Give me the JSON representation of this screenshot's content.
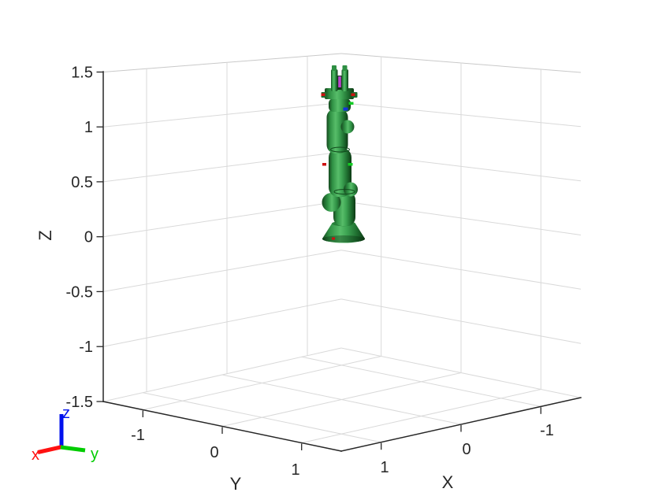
{
  "figure": {
    "background": "#ffffff"
  },
  "axes": {
    "x": {
      "label": "X",
      "tick_labels": [
        "1",
        "0",
        "-1"
      ],
      "range": [
        -1.5,
        1.5
      ]
    },
    "y": {
      "label": "Y",
      "tick_labels": [
        "-1",
        "0",
        "1"
      ],
      "range": [
        -1.5,
        1.5
      ]
    },
    "z": {
      "label": "Z",
      "tick_labels": [
        "1.5",
        "1",
        "0.5",
        "0",
        "-0.5",
        "-1",
        "-1.5"
      ],
      "range": [
        -1.5,
        1.5
      ]
    }
  },
  "triad": {
    "x": {
      "label": "x",
      "color": "#ff1111"
    },
    "y": {
      "label": "y",
      "color": "#00cc00"
    },
    "z": {
      "label": "z",
      "color": "#0011ee"
    }
  },
  "robot": {
    "body_colors": {
      "deep": "#0d3a14",
      "dark": "#16491f",
      "shade": "#1d6b2e",
      "mid": "#2e8f43",
      "light": "#3da453",
      "highlight": "#57bd69"
    },
    "marker_colors": {
      "red": "#cc1111",
      "green": "#12cc22",
      "blue": "#1133dd",
      "magenta": "#bb44cc"
    }
  },
  "colors": {
    "grid": "#d9d9d9",
    "grid_top": "#c9c9c9",
    "axis": "#262626",
    "text": "#262626"
  },
  "chart_data": {
    "type": "3d-scene",
    "title": "",
    "axes": {
      "x": {
        "label": "X",
        "ticks": [
          1,
          0,
          -1
        ],
        "range": [
          -1.5,
          1.5
        ]
      },
      "y": {
        "label": "Y",
        "ticks": [
          -1,
          0,
          1
        ],
        "range": [
          -1.5,
          1.5
        ]
      },
      "z": {
        "label": "Z",
        "ticks": [
          1.5,
          1,
          0.5,
          0,
          -0.5,
          -1,
          -1.5
        ],
        "range": [
          -1.5,
          1.5
        ]
      }
    },
    "grid": true,
    "projection": "perspective",
    "legend": false,
    "objects": [
      {
        "name": "robot-manipulator-arm",
        "color": "#2e8f43",
        "base_position": [
          0,
          0,
          0
        ],
        "z_extent": [
          0,
          1.4
        ],
        "pose": "vertical, articulated links stacked, gripper with two fingers pointing up"
      }
    ],
    "orientation_indicator": {
      "axes": [
        "x",
        "y",
        "z"
      ],
      "colors": [
        "#ff1111",
        "#00cc00",
        "#0011ee"
      ]
    }
  }
}
